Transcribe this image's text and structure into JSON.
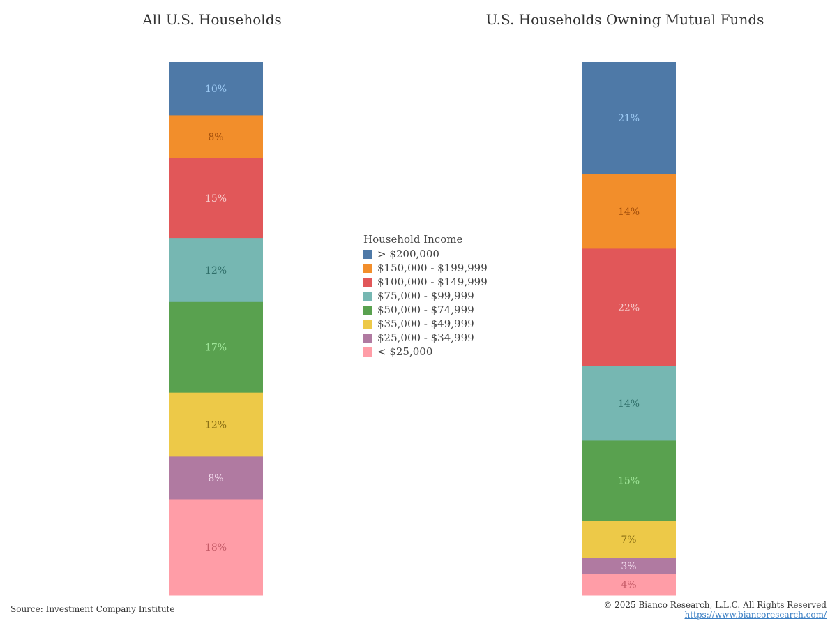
{
  "chart_data": {
    "type": "bar",
    "legend": {
      "title": "Household Income",
      "placement": "center",
      "items": [
        {
          "label": "> $200,000",
          "color": "#4e79a7"
        },
        {
          "label": "$150,000 - $199,999",
          "color": "#f28e2b"
        },
        {
          "label": "$100,000 - $149,999",
          "color": "#e15759"
        },
        {
          "label": "$75,000 - $99,999",
          "color": "#76b7b2"
        },
        {
          "label": "$50,000 - $74,999",
          "color": "#59a14f"
        },
        {
          "label": "$35,000 - $49,999",
          "color": "#edc948"
        },
        {
          "label": "$25,000 - $34,999",
          "color": "#b07aa1"
        },
        {
          "label": "< $25,000",
          "color": "#ff9da7"
        }
      ]
    },
    "label_colors": [
      "#9ecbf5",
      "#a04d0a",
      "#f7cccc",
      "#2f6e69",
      "#9fe598",
      "#8a6f15",
      "#f3dcee",
      "#c45a66"
    ],
    "charts": [
      {
        "title": "All U.S. Households",
        "values": [
          10,
          8,
          15,
          12,
          17,
          12,
          8,
          18
        ],
        "labels": [
          "10%",
          "8%",
          "15%",
          "12%",
          "17%",
          "12%",
          "8%",
          "18%"
        ]
      },
      {
        "title": "U.S. Households Owning Mutual Funds",
        "values": [
          21,
          14,
          22,
          14,
          15,
          7,
          3,
          4
        ],
        "labels": [
          "21%",
          "14%",
          "22%",
          "14%",
          "15%",
          "7%",
          "3%",
          "4%"
        ]
      }
    ]
  },
  "footer": {
    "source": "Source: Investment Company Institute",
    "copyright": "© 2025 Bianco Research, L.L.C. All Rights Reserved",
    "url": "https://www.biancoresearch.com/"
  }
}
